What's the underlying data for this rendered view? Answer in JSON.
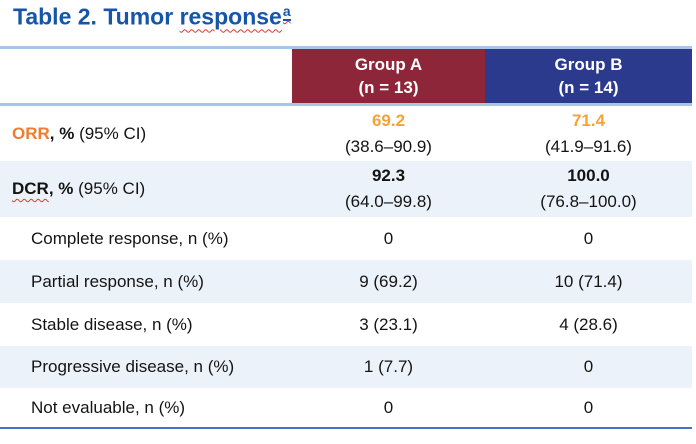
{
  "title": {
    "prefix": "Table 2. Tumor ",
    "misspelled_word": "response",
    "superscript": "a"
  },
  "header": {
    "group_a": {
      "name": "Group A",
      "n": "(n = 13)"
    },
    "group_b": {
      "name": "Group B",
      "n": "(n = 14)"
    }
  },
  "rows": {
    "orr": {
      "label_accent": "ORR",
      "label_bold": ", %",
      "label_normal": " (95% CI)",
      "a_value": "69.2",
      "a_ci": "(38.6–90.9)",
      "b_value": "71.4",
      "b_ci": "(41.9–91.6)"
    },
    "dcr": {
      "label_accent": "DCR",
      "label_bold": ", %",
      "label_normal": " (95% CI)",
      "a_value": "92.3",
      "a_ci": "(64.0–99.8)",
      "b_value": "100.0",
      "b_ci": "(76.8–100.0)"
    },
    "complete_response": {
      "label": "Complete response, n (%)",
      "a": "0",
      "b": "0"
    },
    "partial_response": {
      "label": "Partial response, n (%)",
      "a": "9 (69.2)",
      "b": "10 (71.4)"
    },
    "stable_disease": {
      "label": "Stable disease, n (%)",
      "a": "3 (23.1)",
      "b": "4 (28.6)"
    },
    "progressive_disease": {
      "label": "Progressive disease, n (%)",
      "a": "1 (7.7)",
      "b": "0"
    },
    "not_evaluable": {
      "label": "Not evaluable, n (%)",
      "a": "0",
      "b": "0"
    }
  },
  "colors": {
    "title_blue": "#1556A9",
    "group_a_maroon": "#8E2639",
    "group_b_navy": "#2B3A8C",
    "row_alt_blue": "#ECF2F9",
    "light_border_blue": "#A8C6E6",
    "bottom_border_blue": "#4472C4",
    "orr_label_orange": "#ED7D31",
    "orr_value_orange": "#F6A23A",
    "spellcheck_red": "#E0382B"
  }
}
